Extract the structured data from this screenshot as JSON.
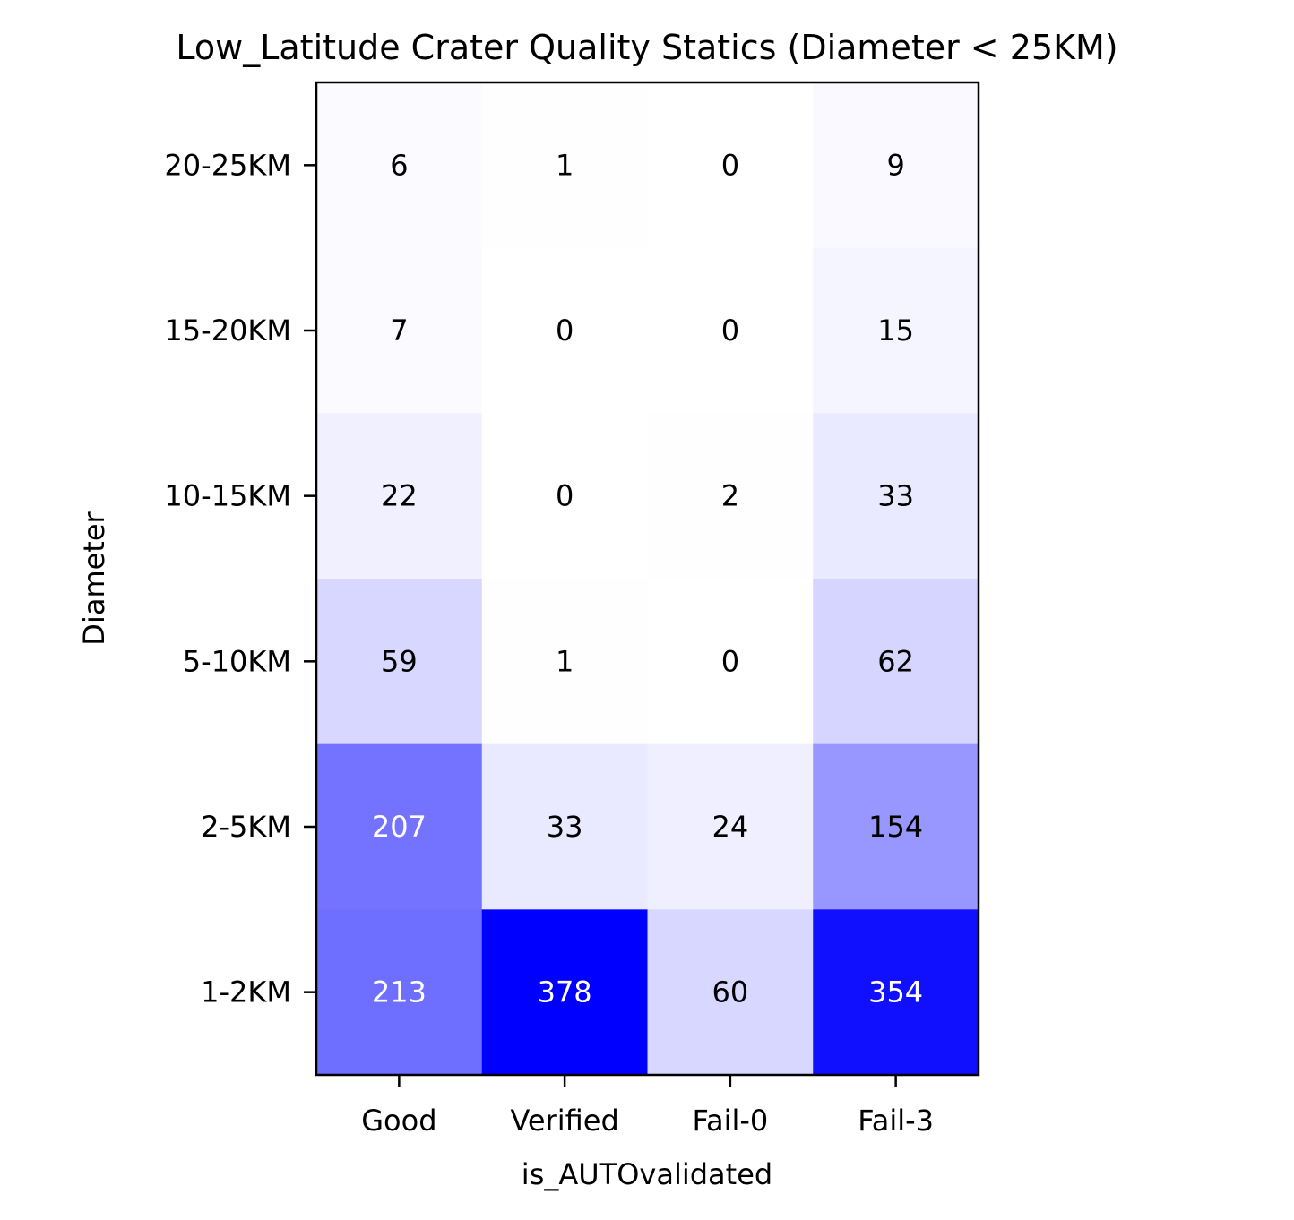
{
  "chart_data": {
    "type": "heatmap",
    "title": "Low_Latitude Crater Quality Statics (Diameter < 25KM)",
    "xlabel": "is_AUTOvalidated",
    "ylabel": "Diameter",
    "x_categories": [
      "Good",
      "Verified",
      "Fail-0",
      "Fail-3"
    ],
    "y_categories": [
      "20-25KM",
      "15-20KM",
      "10-15KM",
      "5-10KM",
      "2-5KM",
      "1-2KM"
    ],
    "values": [
      [
        6,
        1,
        0,
        9
      ],
      [
        7,
        0,
        0,
        15
      ],
      [
        22,
        0,
        2,
        33
      ],
      [
        59,
        1,
        0,
        62
      ],
      [
        207,
        33,
        24,
        154
      ],
      [
        213,
        378,
        60,
        354
      ]
    ],
    "colormap": {
      "low": "#ffffff",
      "high": "#0000ff"
    },
    "vmin": 0,
    "vmax": 378,
    "grid": false
  }
}
